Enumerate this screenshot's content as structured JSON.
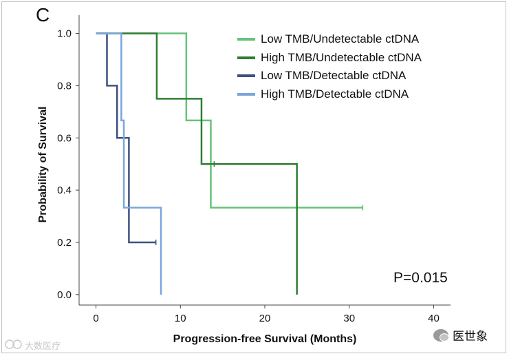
{
  "panel_label": "C",
  "pvalue_text": "P=0.015",
  "watermark_left": "大数医疗",
  "watermark_left_icon": "kaopu-logo-icon",
  "watermark_right": "医世象",
  "watermark_right_icon": "wechat-icon",
  "chart_data": {
    "type": "line",
    "subtype": "kaplan-meier",
    "xlabel": "Progression-free Survival (Months)",
    "ylabel": "Probability of Survival",
    "xlim": [
      -2,
      42
    ],
    "ylim": [
      -0.04,
      1.07
    ],
    "xticks": [
      0,
      10,
      20,
      30,
      40
    ],
    "xtick_labels": [
      "0",
      "10",
      "20",
      "30",
      "40"
    ],
    "yticks": [
      0.0,
      0.2,
      0.4,
      0.6,
      0.8,
      1.0
    ],
    "ytick_labels": [
      "0.0",
      "0.2",
      "0.4",
      "0.6",
      "0.8",
      "1.0"
    ],
    "legend_position": "top-right",
    "grid": false,
    "series": [
      {
        "name": "Low TMB/Undetectable ctDNA",
        "color": "#66c27a",
        "steps": [
          [
            0,
            1.0
          ],
          [
            10.7,
            0.667
          ],
          [
            13.6,
            0.333
          ],
          [
            31.6,
            0.333
          ]
        ],
        "censored": [
          [
            31.6,
            0.333
          ]
        ]
      },
      {
        "name": "High TMB/Undetectable ctDNA",
        "color": "#2f7d32",
        "steps": [
          [
            0,
            1.0
          ],
          [
            7.2,
            0.75
          ],
          [
            12.5,
            0.5
          ],
          [
            23.8,
            0.0
          ]
        ],
        "censored": [
          [
            14.0,
            0.5
          ]
        ]
      },
      {
        "name": "Low TMB/Detectable ctDNA",
        "color": "#3d5080",
        "steps": [
          [
            0,
            1.0
          ],
          [
            1.3,
            0.8
          ],
          [
            2.5,
            0.6
          ],
          [
            3.9,
            0.2
          ],
          [
            7.1,
            0.2
          ]
        ],
        "censored": [
          [
            7.1,
            0.2
          ]
        ]
      },
      {
        "name": "High TMB/Detectable ctDNA",
        "color": "#79a6dc",
        "steps": [
          [
            0,
            1.0
          ],
          [
            3.0,
            0.667
          ],
          [
            3.3,
            0.333
          ],
          [
            7.7,
            0.0
          ]
        ],
        "censored": []
      }
    ]
  }
}
